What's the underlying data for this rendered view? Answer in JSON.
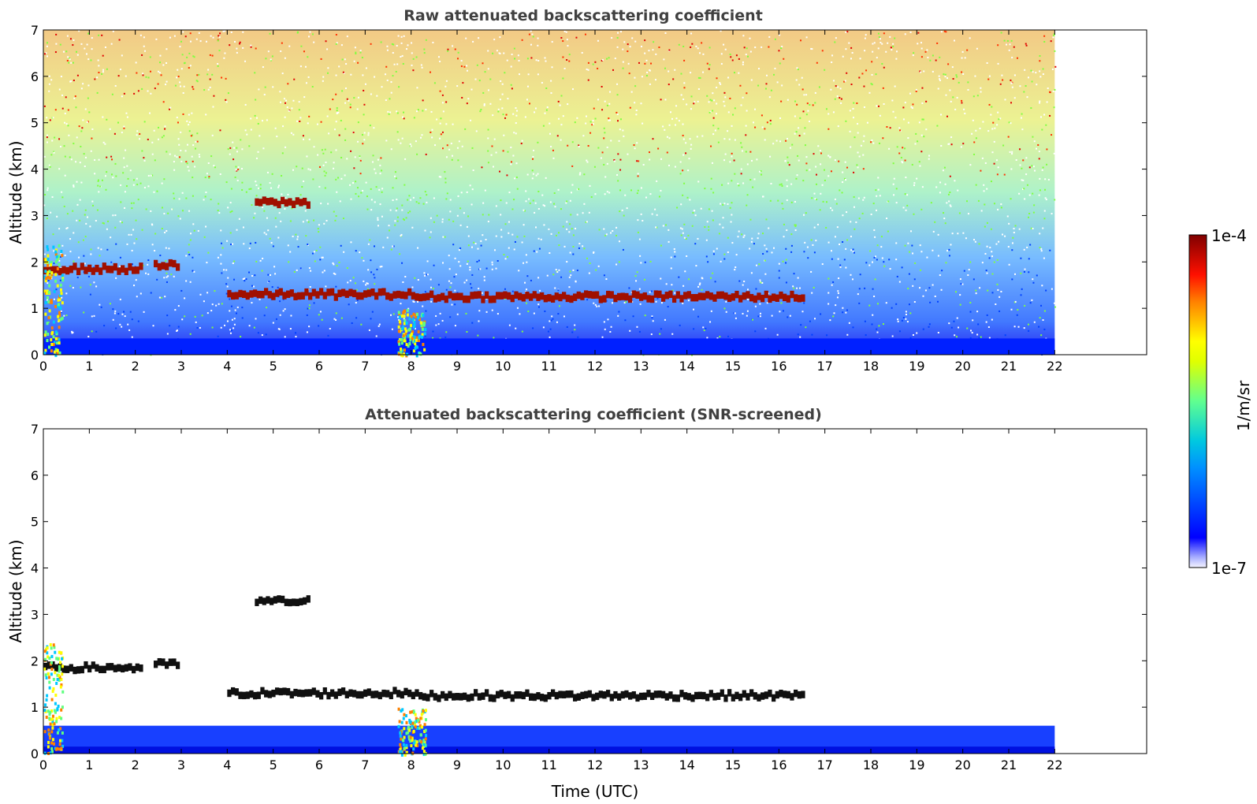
{
  "chart_data": [
    {
      "type": "heatmap",
      "title": "Raw attenuated backscattering coefficient",
      "xlabel": "",
      "ylabel": "Altitude (km)",
      "xlim": [
        0,
        24
      ],
      "ylim": [
        0,
        7
      ],
      "x_ticks": [
        "0",
        "1",
        "2",
        "3",
        "4",
        "5",
        "6",
        "7",
        "8",
        "9",
        "10",
        "11",
        "12",
        "13",
        "14",
        "15",
        "16",
        "17",
        "18",
        "19",
        "20",
        "21",
        "22"
      ],
      "y_ticks": [
        "0",
        "1",
        "2",
        "3",
        "4",
        "5",
        "6",
        "7"
      ],
      "data_extent_time_utc": [
        0,
        22
      ],
      "features": [
        {
          "kind": "cloud_layer",
          "time_range": [
            0,
            2.1
          ],
          "altitude_km": 1.85
        },
        {
          "kind": "cloud_layer",
          "time_range": [
            2.4,
            2.9
          ],
          "altitude_km": 1.92
        },
        {
          "kind": "cloud_layer",
          "time_range": [
            4.6,
            5.8
          ],
          "altitude_km": 3.28
        },
        {
          "kind": "cloud_layer",
          "time_range": [
            4.0,
            8.0
          ],
          "altitude_km": 1.3
        },
        {
          "kind": "cloud_layer",
          "time_range": [
            8.0,
            16.5
          ],
          "altitude_km": 1.25
        },
        {
          "kind": "precipitation",
          "time_range": [
            7.7,
            8.3
          ],
          "altitude_km": 0.5
        },
        {
          "kind": "precipitation",
          "time_range": [
            0,
            0.4
          ],
          "altitude_km": 1.2
        }
      ]
    },
    {
      "type": "heatmap",
      "title": "Attenuated backscattering coefficient (SNR-screened)",
      "xlabel": "Time (UTC)",
      "ylabel": "Altitude (km)",
      "xlim": [
        0,
        24
      ],
      "ylim": [
        0,
        7
      ],
      "x_ticks": [
        "0",
        "1",
        "2",
        "3",
        "4",
        "5",
        "6",
        "7",
        "8",
        "9",
        "10",
        "11",
        "12",
        "13",
        "14",
        "15",
        "16",
        "17",
        "18",
        "19",
        "20",
        "21",
        "22"
      ],
      "y_ticks": [
        "0",
        "1",
        "2",
        "3",
        "4",
        "5",
        "6",
        "7"
      ],
      "data_extent_time_utc": [
        0,
        22
      ],
      "boundary_layer_top_km": 0.6
    }
  ],
  "colorbar": {
    "label": "1/m/sr",
    "max_label": "1e-4",
    "min_label": "1e-7",
    "scale": "log",
    "colormap": [
      "#f4f4ff",
      "#0000ff",
      "#00c8ff",
      "#80ff80",
      "#ffff00",
      "#ff8000",
      "#ff0000",
      "#800000"
    ]
  }
}
